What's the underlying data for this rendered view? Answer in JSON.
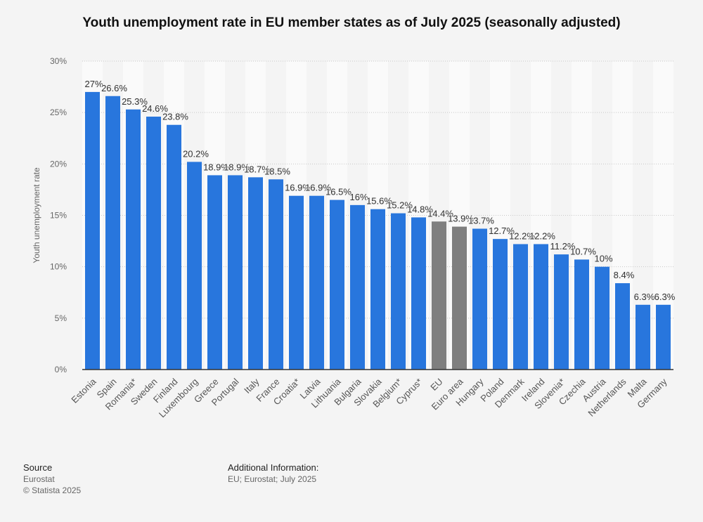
{
  "chart_data": {
    "type": "bar",
    "title": "Youth unemployment rate in EU member states as of July 2025 (seasonally adjusted)",
    "xlabel": "",
    "ylabel": "Youth unemployment rate",
    "ylim": [
      0,
      30
    ],
    "yticks": [
      "0%",
      "5%",
      "10%",
      "15%",
      "20%",
      "25%",
      "30%"
    ],
    "grid": true,
    "categories": [
      "Estonia",
      "Spain",
      "Romania*",
      "Sweden",
      "Finland",
      "Luxembourg",
      "Greece",
      "Portugal",
      "Italy",
      "France",
      "Croatia*",
      "Latvia",
      "Lithuania",
      "Bulgaria",
      "Slovakia",
      "Belgium*",
      "Cyprus*",
      "EU",
      "Euro area",
      "Hungary",
      "Poland",
      "Denmark",
      "Ireland",
      "Slovenia*",
      "Czechia",
      "Austria",
      "Netherlands",
      "Malta",
      "Germany"
    ],
    "values": [
      27,
      26.6,
      25.3,
      24.6,
      23.8,
      20.2,
      18.9,
      18.9,
      18.7,
      18.5,
      16.9,
      16.9,
      16.5,
      16,
      15.6,
      15.2,
      14.8,
      14.4,
      13.9,
      13.7,
      12.7,
      12.2,
      12.2,
      11.2,
      10.7,
      10,
      8.4,
      6.3,
      6.3
    ],
    "value_suffix": "%",
    "colors": {
      "country": "#2876dd",
      "aggregate": "#7f7f7f"
    },
    "aggregate_categories": [
      "EU",
      "Euro area"
    ]
  },
  "footer": {
    "source_heading": "Source",
    "source_lines": [
      "Eurostat",
      "© Statista 2025"
    ],
    "info_heading": "Additional Information:",
    "info_text": "EU; Eurostat; July 2025"
  }
}
